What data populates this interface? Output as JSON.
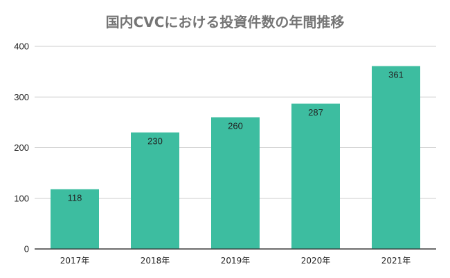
{
  "chart_data": {
    "type": "bar",
    "title": "国内CVCにおける投資件数の年間推移",
    "categories": [
      "2017年",
      "2018年",
      "2019年",
      "2020年",
      "2021年"
    ],
    "values": [
      118,
      230,
      260,
      287,
      361
    ],
    "ylim": [
      0,
      400
    ],
    "yticks": [
      0,
      100,
      200,
      300,
      400
    ],
    "xlabel": "",
    "ylabel": "",
    "grid": true,
    "bar_color": "#3dbda0",
    "data_labels": true
  }
}
